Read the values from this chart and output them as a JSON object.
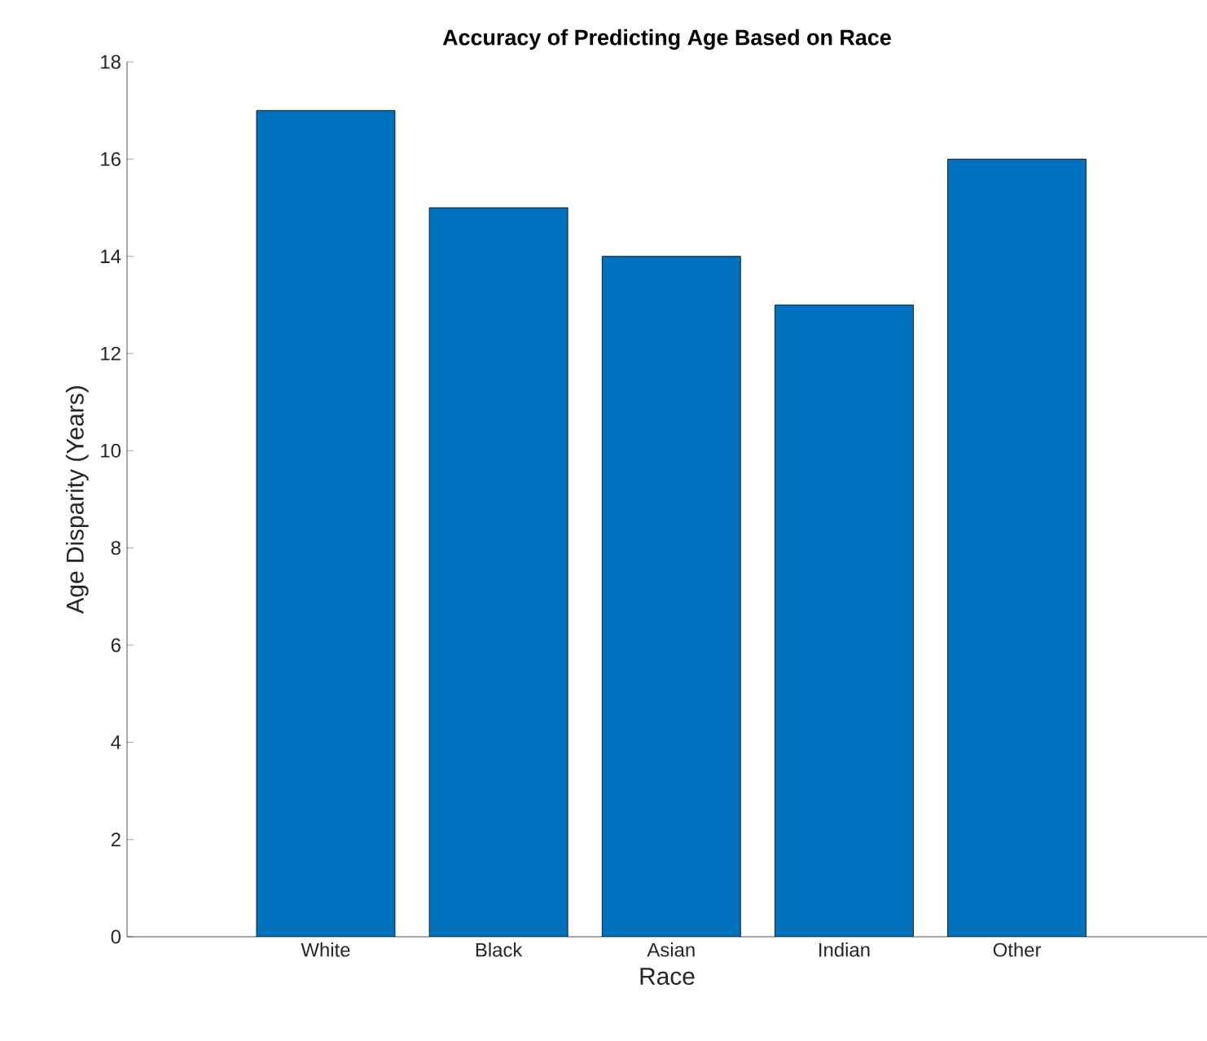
{
  "chart_data": {
    "type": "bar",
    "title": "Accuracy of Predicting Age Based on Race",
    "xlabel": "Race",
    "ylabel": "Age Disparity (Years)",
    "categories": [
      "White",
      "Black",
      "Asian",
      "Indian",
      "Other"
    ],
    "values": [
      17,
      15,
      14,
      13,
      16
    ],
    "color": "#0072bd",
    "ylim": [
      0,
      18
    ],
    "yticks": [
      0,
      2,
      4,
      6,
      8,
      10,
      12,
      14,
      16,
      18
    ],
    "grid": false
  }
}
